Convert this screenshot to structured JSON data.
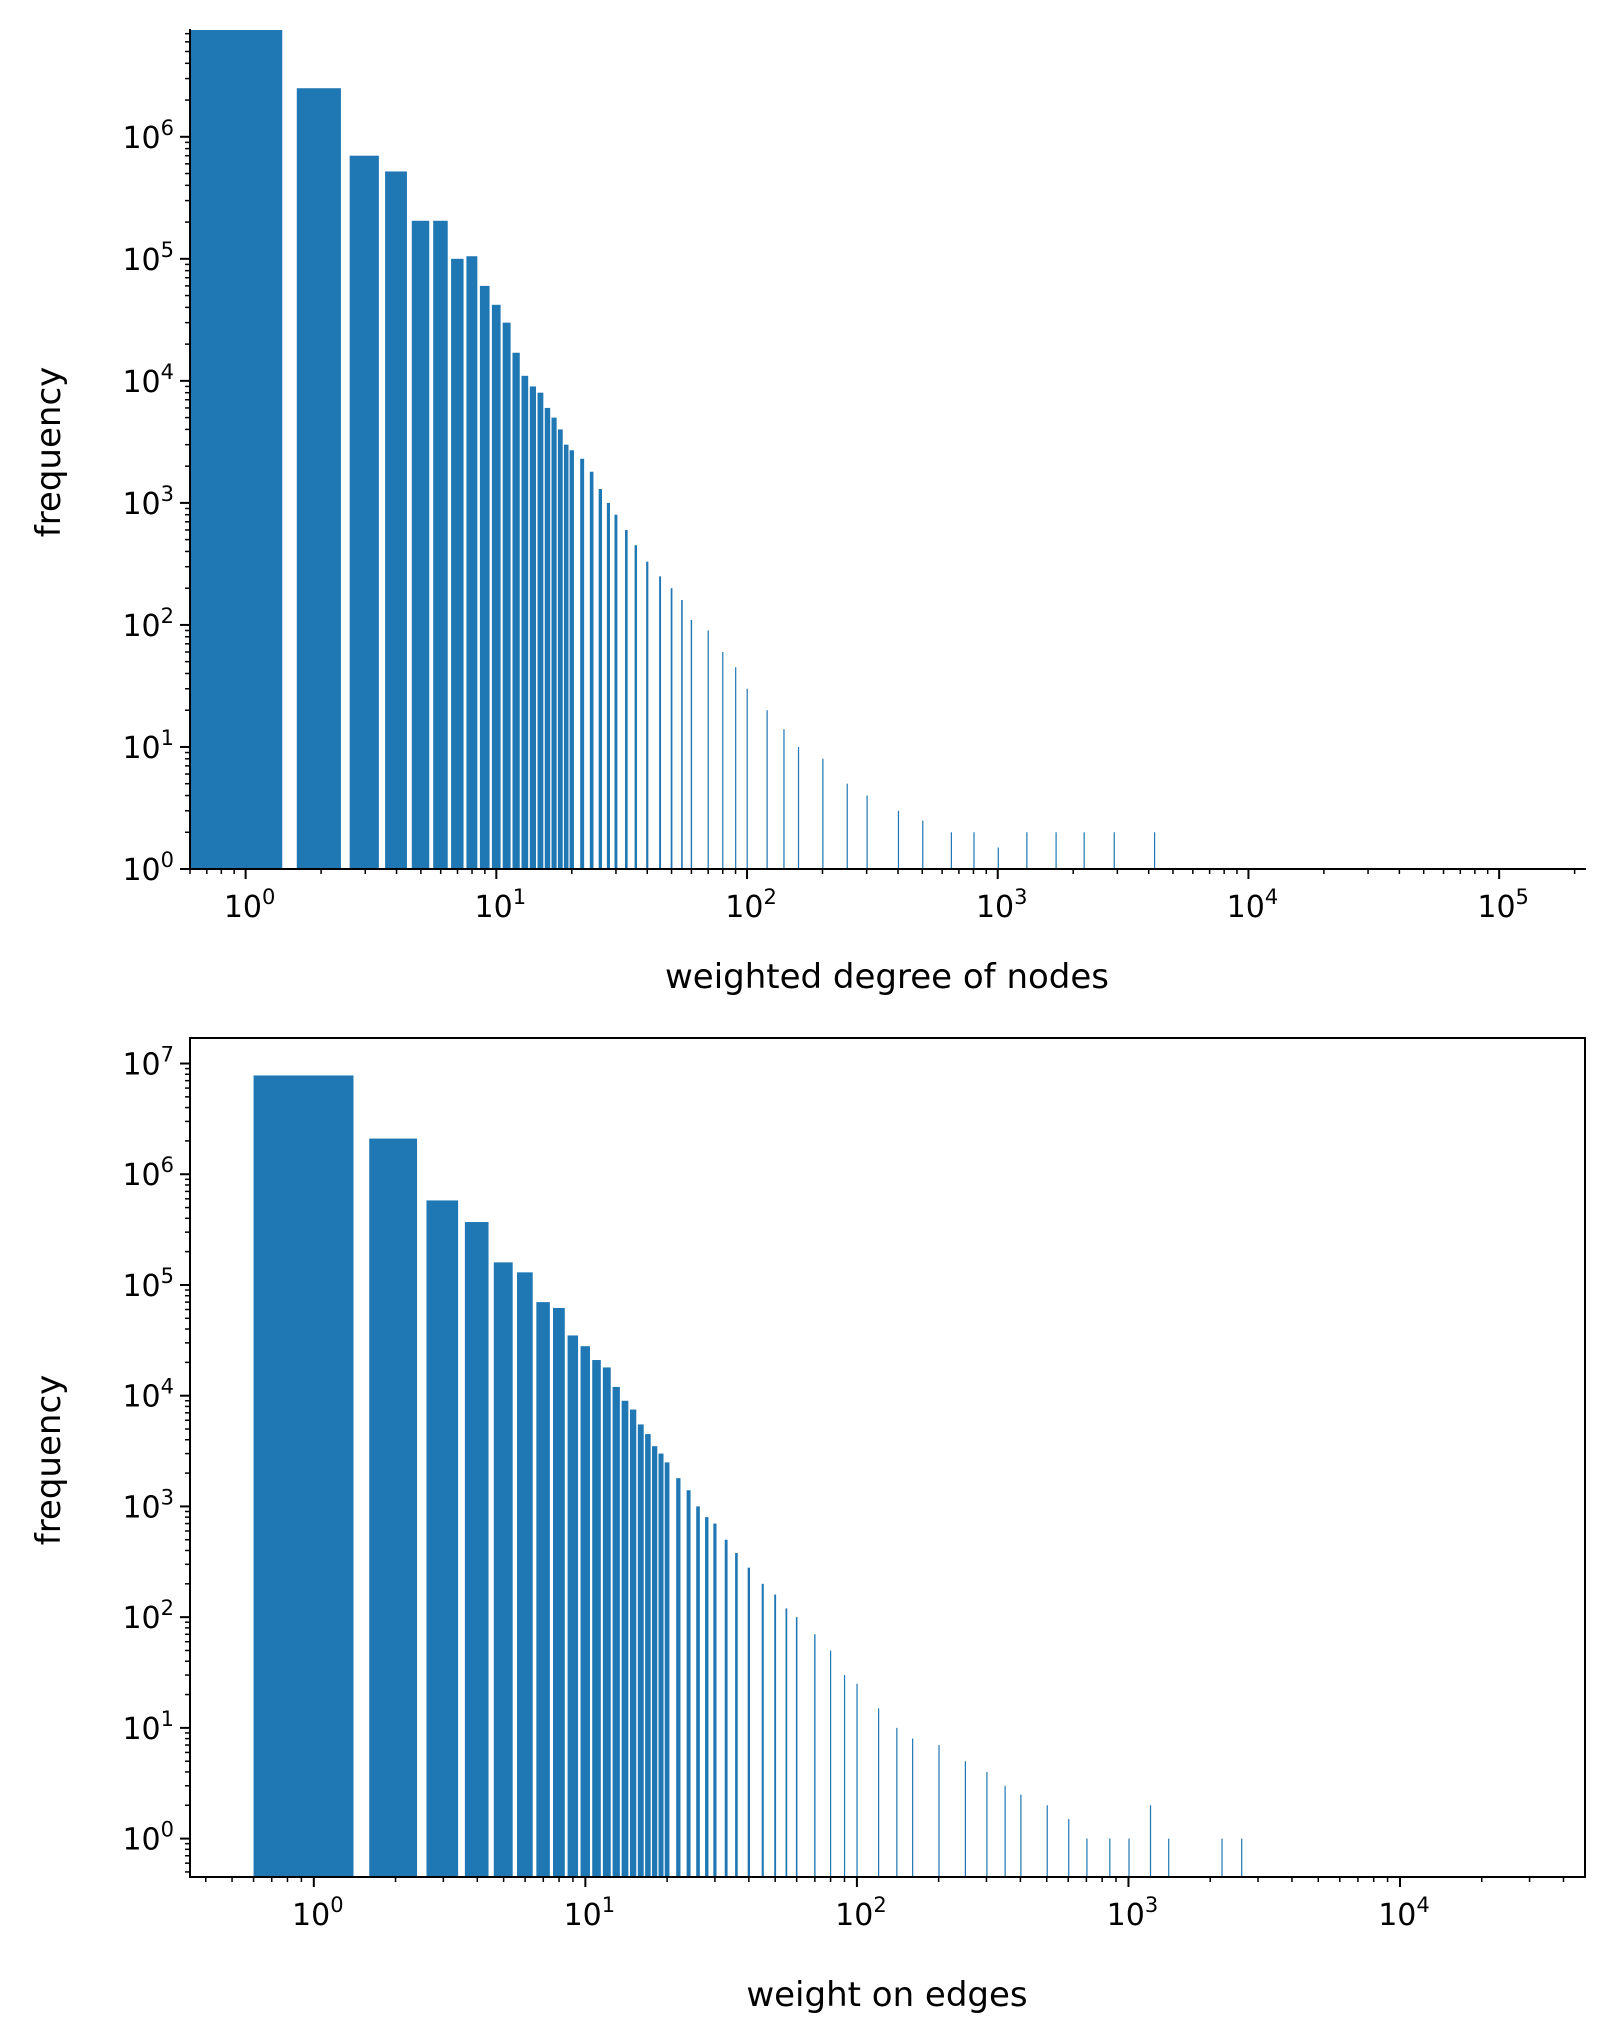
{
  "chart_data": [
    {
      "type": "bar",
      "title": "",
      "xlabel": "weighted degree of nodes",
      "ylabel": "frequency",
      "x_scale": "log",
      "y_scale": "log",
      "xlim": [
        0.6,
        220000
      ],
      "ylim": [
        1,
        7500000
      ],
      "x_ticks": [
        {
          "base": "10",
          "exp": "0",
          "value": 1
        },
        {
          "base": "10",
          "exp": "1",
          "value": 10
        },
        {
          "base": "10",
          "exp": "2",
          "value": 100
        },
        {
          "base": "10",
          "exp": "3",
          "value": 1000
        },
        {
          "base": "10",
          "exp": "4",
          "value": 10000
        },
        {
          "base": "10",
          "exp": "5",
          "value": 100000
        }
      ],
      "y_ticks": [
        {
          "base": "10",
          "exp": "0",
          "value": 1
        },
        {
          "base": "10",
          "exp": "1",
          "value": 10
        },
        {
          "base": "10",
          "exp": "2",
          "value": 100
        },
        {
          "base": "10",
          "exp": "3",
          "value": 1000
        },
        {
          "base": "10",
          "exp": "4",
          "value": 10000
        },
        {
          "base": "10",
          "exp": "5",
          "value": 100000
        },
        {
          "base": "10",
          "exp": "6",
          "value": 1000000
        }
      ],
      "frame": "left-bottom",
      "bar_width_units": 0.8,
      "color": "#1f77b4",
      "x": [
        1,
        2,
        3,
        4,
        5,
        6,
        7,
        8,
        9,
        10,
        11,
        12,
        13,
        14,
        15,
        16,
        17,
        18,
        19,
        20,
        22,
        24,
        26,
        28,
        30,
        33,
        36,
        40,
        45,
        50,
        55,
        60,
        70,
        80,
        90,
        100,
        120,
        140,
        160,
        200,
        250,
        300,
        400,
        500,
        650,
        800,
        1000,
        1300,
        1700,
        2200,
        2900,
        4200
      ],
      "values": [
        7500000,
        2500000,
        700000,
        520000,
        205000,
        205000,
        100000,
        105000,
        60000,
        42000,
        30000,
        17000,
        11000,
        9000,
        8000,
        6000,
        5000,
        4000,
        3000,
        2700,
        2300,
        1800,
        1300,
        1000,
        800,
        600,
        450,
        330,
        250,
        200,
        160,
        110,
        90,
        60,
        45,
        30,
        20,
        14,
        10,
        8,
        5,
        4,
        3,
        2.5,
        2,
        2,
        1.5,
        2,
        2,
        2,
        2,
        2
      ]
    },
    {
      "type": "bar",
      "title": "",
      "xlabel": "weight on edges",
      "ylabel": "frequency",
      "x_scale": "log",
      "y_scale": "log",
      "xlim": [
        0.35,
        48000
      ],
      "ylim": [
        0.45,
        17000000
      ],
      "x_ticks": [
        {
          "base": "10",
          "exp": "0",
          "value": 1
        },
        {
          "base": "10",
          "exp": "1",
          "value": 10
        },
        {
          "base": "10",
          "exp": "2",
          "value": 100
        },
        {
          "base": "10",
          "exp": "3",
          "value": 1000
        },
        {
          "base": "10",
          "exp": "4",
          "value": 10000
        }
      ],
      "y_ticks": [
        {
          "base": "10",
          "exp": "0",
          "value": 1
        },
        {
          "base": "10",
          "exp": "1",
          "value": 10
        },
        {
          "base": "10",
          "exp": "2",
          "value": 100
        },
        {
          "base": "10",
          "exp": "3",
          "value": 1000
        },
        {
          "base": "10",
          "exp": "4",
          "value": 10000
        },
        {
          "base": "10",
          "exp": "5",
          "value": 100000
        },
        {
          "base": "10",
          "exp": "6",
          "value": 1000000
        },
        {
          "base": "10",
          "exp": "7",
          "value": 10000000
        }
      ],
      "frame": "box",
      "bar_width_units": 0.8,
      "color": "#1f77b4",
      "x": [
        1,
        2,
        3,
        4,
        5,
        6,
        7,
        8,
        9,
        10,
        11,
        12,
        13,
        14,
        15,
        16,
        17,
        18,
        19,
        20,
        22,
        24,
        26,
        28,
        30,
        33,
        36,
        40,
        45,
        50,
        55,
        60,
        70,
        80,
        90,
        100,
        120,
        140,
        160,
        200,
        250,
        300,
        350,
        400,
        500,
        600,
        700,
        850,
        1000,
        1200,
        1400,
        2200,
        2600
      ],
      "values": [
        7800000,
        2100000,
        580000,
        370000,
        160000,
        130000,
        70000,
        62000,
        35000,
        28000,
        21000,
        18000,
        12000,
        9000,
        7500,
        5500,
        4500,
        3500,
        3000,
        2500,
        1800,
        1400,
        1000,
        800,
        700,
        500,
        380,
        280,
        200,
        160,
        120,
        100,
        70,
        50,
        30,
        25,
        15,
        10,
        8,
        7,
        5,
        4,
        3,
        2.5,
        2,
        1.5,
        1,
        1,
        1,
        2,
        1,
        1,
        1
      ]
    }
  ]
}
